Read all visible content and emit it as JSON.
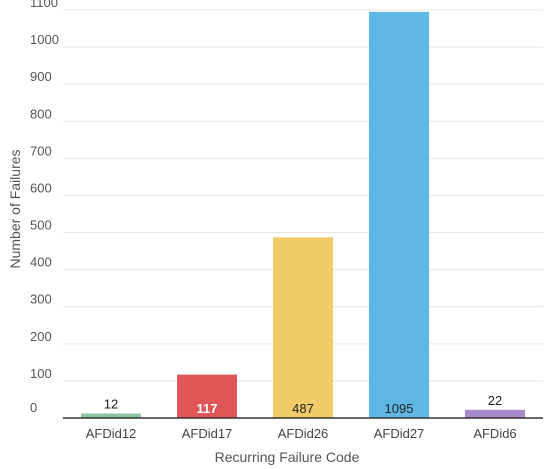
{
  "chart_data": {
    "type": "bar",
    "title": "",
    "xlabel": "Recurring Failure Code",
    "ylabel": "Number of Failures",
    "ylim": [
      0,
      1100
    ],
    "yticks": [
      0,
      100,
      200,
      300,
      400,
      500,
      600,
      700,
      800,
      900,
      1000,
      1100
    ],
    "grid": true,
    "legend": "none",
    "categories": [
      "AFDid12",
      "AFDid17",
      "AFDid26",
      "AFDid27",
      "AFDid6"
    ],
    "values": [
      12,
      117,
      487,
      1095,
      22
    ],
    "data_labels": [
      "12",
      "117",
      "487",
      "1095",
      "22"
    ],
    "colors": [
      "#8cc49f",
      "#e05555",
      "#f0cb68",
      "#5fb7e6",
      "#a889c9"
    ],
    "label_colors": [
      "#222222",
      "#ffffff",
      "#222222",
      "#222222",
      "#222222"
    ]
  }
}
